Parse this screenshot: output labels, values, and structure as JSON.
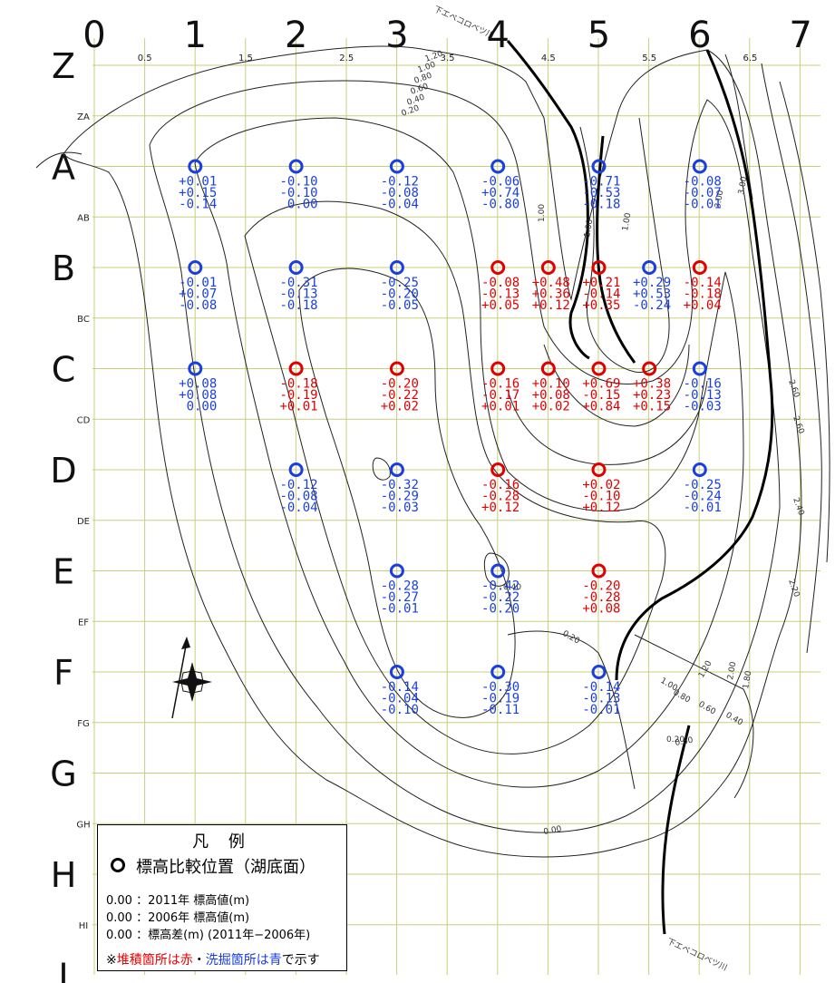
{
  "grid": {
    "columns": [
      "0",
      "1",
      "2",
      "3",
      "4",
      "5",
      "6",
      "7"
    ],
    "half_columns": [
      "0.5",
      "1.5",
      "2.5",
      "3.5",
      "4.5",
      "5.5",
      "6.5"
    ],
    "rows": [
      "Z",
      "A",
      "B",
      "C",
      "D",
      "E",
      "F",
      "G",
      "H",
      "I"
    ],
    "half_rows": [
      "ZA",
      "AB",
      "BC",
      "CD",
      "DE",
      "EF",
      "FG",
      "GH",
      "HI"
    ]
  },
  "colors": {
    "deposit": "#e00000",
    "erosion": "#1a3fe0",
    "grid": "#c8cf7a",
    "contour": "#222222"
  },
  "points": [
    {
      "col": 1,
      "row": "A",
      "status": "erosion",
      "values": [
        "+0.01",
        "+0.15",
        "-0.14"
      ]
    },
    {
      "col": 2,
      "row": "A",
      "status": "erosion",
      "values": [
        "-0.10",
        "-0.10",
        "0.00"
      ]
    },
    {
      "col": 3,
      "row": "A",
      "status": "erosion",
      "values": [
        "-0.12",
        "-0.08",
        "-0.04"
      ]
    },
    {
      "col": 4,
      "row": "A",
      "status": "erosion",
      "values": [
        "-0.06",
        "+0.74",
        "-0.80"
      ]
    },
    {
      "col": 5,
      "row": "A",
      "status": "erosion",
      "values": [
        "-0.71",
        "-0.53",
        "-0.18"
      ]
    },
    {
      "col": 6,
      "row": "A",
      "status": "erosion",
      "values": [
        "-0.08",
        "-0.07",
        "-0.01"
      ]
    },
    {
      "col": 1,
      "row": "B",
      "status": "erosion",
      "values": [
        "-0.01",
        "+0.07",
        "-0.08"
      ]
    },
    {
      "col": 2,
      "row": "B",
      "status": "erosion",
      "values": [
        "-0.31",
        "-0.13",
        "-0.18"
      ]
    },
    {
      "col": 3,
      "row": "B",
      "status": "erosion",
      "values": [
        "-0.25",
        "-0.20",
        "-0.05"
      ]
    },
    {
      "col": 4,
      "row": "B",
      "status": "deposit",
      "values": [
        "-0.08",
        "-0.13",
        "+0.05"
      ]
    },
    {
      "col": 4.5,
      "row": "B",
      "status": "deposit",
      "values": [
        "+0.48",
        "+0.36",
        "+0.12"
      ]
    },
    {
      "col": 5,
      "row": "B",
      "status": "deposit",
      "values": [
        "+0.21",
        "-0.14",
        "+0.35"
      ]
    },
    {
      "col": 5.5,
      "row": "B",
      "status": "erosion",
      "values": [
        "+0.29",
        "+0.53",
        "-0.24"
      ]
    },
    {
      "col": 6,
      "row": "B",
      "status": "deposit",
      "values": [
        "-0.14",
        "-0.18",
        "+0.04"
      ]
    },
    {
      "col": 1,
      "row": "C",
      "status": "erosion",
      "values": [
        "+0.08",
        "+0.08",
        "0.00"
      ]
    },
    {
      "col": 2,
      "row": "C",
      "status": "deposit",
      "values": [
        "-0.18",
        "-0.19",
        "+0.01"
      ]
    },
    {
      "col": 3,
      "row": "C",
      "status": "deposit",
      "values": [
        "-0.20",
        "-0.22",
        "+0.02"
      ]
    },
    {
      "col": 4,
      "row": "C",
      "status": "deposit",
      "values": [
        "-0.16",
        "-0.17",
        "+0.01"
      ]
    },
    {
      "col": 4.5,
      "row": "C",
      "status": "deposit",
      "values": [
        "+0.10",
        "+0.08",
        "+0.02"
      ]
    },
    {
      "col": 5,
      "row": "C",
      "status": "deposit",
      "values": [
        "+0.69",
        "-0.15",
        "+0.84"
      ]
    },
    {
      "col": 5.5,
      "row": "C",
      "status": "deposit",
      "values": [
        "+0.38",
        "+0.23",
        "+0.15"
      ]
    },
    {
      "col": 6,
      "row": "C",
      "status": "erosion",
      "values": [
        "-0.16",
        "-0.13",
        "-0.03"
      ]
    },
    {
      "col": 2,
      "row": "D",
      "status": "erosion",
      "values": [
        "-0.12",
        "-0.08",
        "-0.04"
      ]
    },
    {
      "col": 3,
      "row": "D",
      "status": "erosion",
      "values": [
        "-0.32",
        "-0.29",
        "-0.03"
      ]
    },
    {
      "col": 4,
      "row": "D",
      "status": "deposit",
      "values": [
        "-0.16",
        "-0.28",
        "+0.12"
      ]
    },
    {
      "col": 5,
      "row": "D",
      "status": "deposit",
      "values": [
        "+0.02",
        "-0.10",
        "+0.12"
      ]
    },
    {
      "col": 6,
      "row": "D",
      "status": "erosion",
      "values": [
        "-0.25",
        "-0.24",
        "-0.01"
      ]
    },
    {
      "col": 3,
      "row": "E",
      "status": "erosion",
      "values": [
        "-0.28",
        "-0.27",
        "-0.01"
      ]
    },
    {
      "col": 4,
      "row": "E",
      "status": "erosion",
      "values": [
        "-0.42",
        "-0.22",
        "-0.20"
      ]
    },
    {
      "col": 5,
      "row": "E",
      "status": "deposit",
      "values": [
        "-0.20",
        "-0.28",
        "+0.08"
      ]
    },
    {
      "col": 3,
      "row": "F",
      "status": "erosion",
      "values": [
        "-0.14",
        "-0.04",
        "-0.10"
      ]
    },
    {
      "col": 4,
      "row": "F",
      "status": "erosion",
      "values": [
        "-0.30",
        "-0.19",
        "-0.11"
      ]
    },
    {
      "col": 5,
      "row": "F",
      "status": "erosion",
      "values": [
        "-0.14",
        "-0.13",
        "-0.01"
      ]
    }
  ],
  "contour_labels": [
    "1.20",
    "1.00",
    "0.80",
    "0.60",
    "0.40",
    "0.20",
    "1.00",
    "1.00",
    "1.00",
    "3.00",
    "3.00",
    "2.60",
    "2.60",
    "2.40",
    "2.20",
    "0.40",
    "0.20",
    "1.00",
    "1.20",
    "0.80",
    "0.60",
    "0.40",
    "2.00",
    "1.80",
    "0.60",
    "0.20",
    "0.00"
  ],
  "river_labels": [
    "下エベコロベツ川",
    "下エベコロベツ川"
  ],
  "legend": {
    "title": "凡 例",
    "marker_label": "標高比較位置（湖底面）",
    "rows": [
      {
        "value": "0.00",
        "desc": "：2011年 標高値(m)"
      },
      {
        "value": "0.00",
        "desc": "：2006年 標高値(m)"
      },
      {
        "value": "0.00",
        "desc": "：標高差(m) (2011年−2006年)"
      }
    ],
    "note_prefix": "※",
    "note_red": "堆積箇所は赤",
    "note_sep": "・",
    "note_blue": "洗掘箇所は青",
    "note_suffix": "で示す"
  }
}
